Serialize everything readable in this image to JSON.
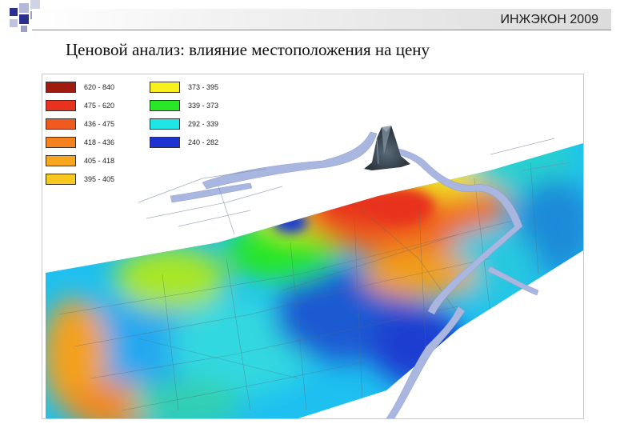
{
  "header": {
    "title": "ИНЖЭКОН 2009"
  },
  "slide": {
    "title": "Ценовой анализ: влияние местоположения на цену"
  },
  "legend": [
    {
      "label": "620 - 840",
      "color": "#a01a10"
    },
    {
      "label": "475 - 620",
      "color": "#e8321e"
    },
    {
      "label": "436 - 475",
      "color": "#f05a1e"
    },
    {
      "label": "418 - 436",
      "color": "#f4821e"
    },
    {
      "label": "405 - 418",
      "color": "#f8a61e"
    },
    {
      "label": "395 - 405",
      "color": "#f8c81e"
    },
    {
      "label": "373 - 395",
      "color": "#f8f01e"
    },
    {
      "label": "339 - 373",
      "color": "#28e628"
    },
    {
      "label": "292 - 339",
      "color": "#1ee6e6"
    },
    {
      "label": "240 - 282",
      "color": "#1e32d2"
    }
  ],
  "colors": {
    "accent_square_dark": "#2b2f8f",
    "accent_square_light": "#9aa0c8",
    "river": "#a9b7e0"
  }
}
